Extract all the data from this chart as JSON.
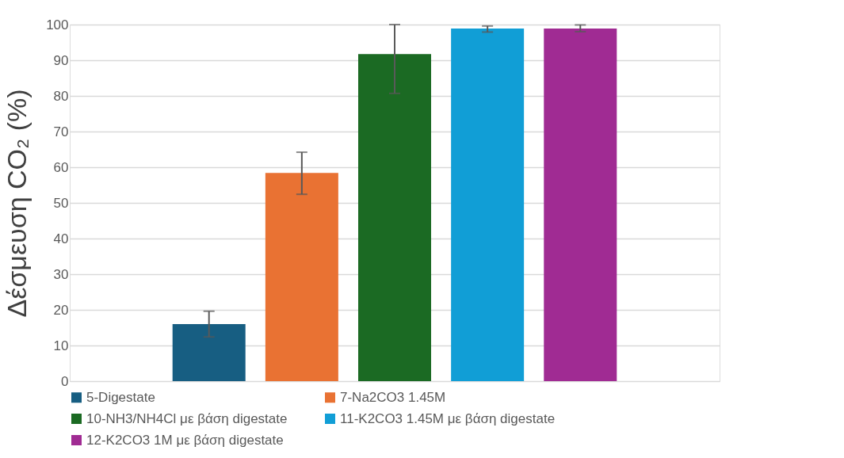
{
  "chart_data": {
    "type": "bar",
    "ylabel": "Δέσμευση CO₂ (%)",
    "categories": [
      null,
      null,
      null,
      null,
      null,
      null,
      null
    ],
    "series": [
      {
        "name": "5-Digestate",
        "color": "#175e82",
        "values": [
          null,
          16,
          null,
          null,
          null,
          null,
          null
        ],
        "errors": [
          null,
          [
            12.4,
            19.6
          ],
          null,
          null,
          null,
          null,
          null
        ]
      },
      {
        "name": "7-Na2CO3 1.45M",
        "color": "#e97233",
        "values": [
          null,
          null,
          58.4,
          null,
          null,
          null,
          null
        ],
        "errors": [
          null,
          null,
          [
            52.4,
            64.2
          ],
          null,
          null,
          null,
          null
        ]
      },
      {
        "name": "10-NH3/NH4Cl με βάση digestate",
        "color": "#1b6a23",
        "values": [
          null,
          null,
          null,
          91.7,
          null,
          null,
          null
        ],
        "errors": [
          null,
          null,
          null,
          [
            80.7,
            100
          ],
          null,
          null,
          null
        ]
      },
      {
        "name": "11-K2CO3 1.45M με βάση digestate",
        "color": "#119ed6",
        "values": [
          null,
          null,
          null,
          null,
          98.9,
          null,
          null
        ],
        "errors": [
          null,
          null,
          null,
          null,
          [
            97.9,
            99.6
          ],
          null,
          null
        ]
      },
      {
        "name": "12-K2CO3 1M με βάση digestate",
        "color": "#a02b93",
        "values": [
          null,
          null,
          null,
          null,
          null,
          98.9,
          null
        ],
        "errors": [
          null,
          null,
          null,
          null,
          null,
          [
            98,
            99.9
          ],
          null
        ]
      }
    ],
    "ylim": [
      0,
      100
    ],
    "yticks": [
      0,
      10,
      20,
      30,
      40,
      50,
      60,
      70,
      80,
      90,
      100
    ],
    "grid": "y",
    "legend": "bottom",
    "tick_labels": "y"
  }
}
